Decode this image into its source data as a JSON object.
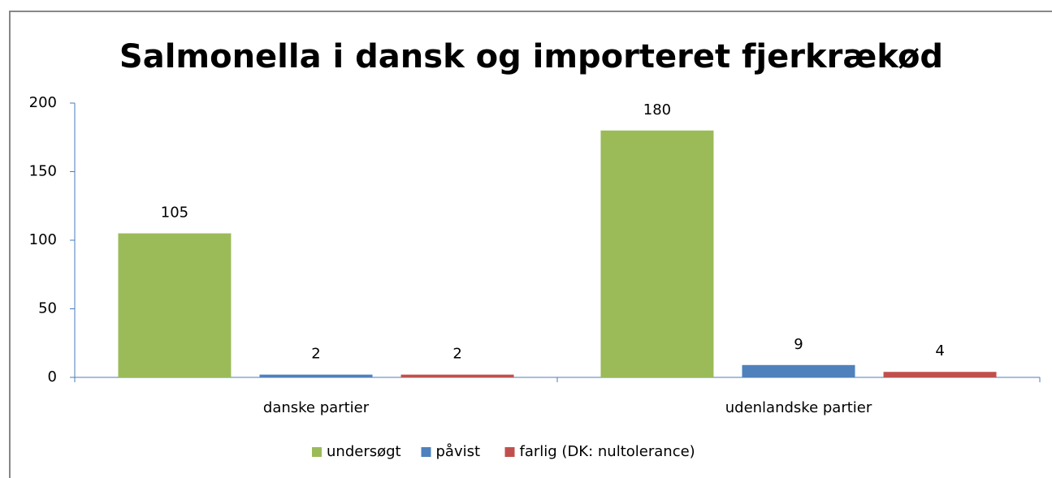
{
  "chart_data": {
    "type": "bar",
    "title": "Salmonella i dansk og importeret fjerkrækød",
    "categories": [
      "danske partier",
      "udenlandske partier"
    ],
    "series": [
      {
        "name": "undersøgt",
        "color": "#9bbb59",
        "values": [
          105,
          180
        ]
      },
      {
        "name": "påvist",
        "color": "#4f81bd",
        "values": [
          2,
          9
        ]
      },
      {
        "name": "farlig (DK: nultolerance)",
        "color": "#c0504d",
        "values": [
          2,
          4
        ]
      }
    ],
    "ylim": [
      0,
      200
    ],
    "yticks": [
      0,
      50,
      100,
      150,
      200
    ],
    "grid": false,
    "legend": "bottom"
  }
}
